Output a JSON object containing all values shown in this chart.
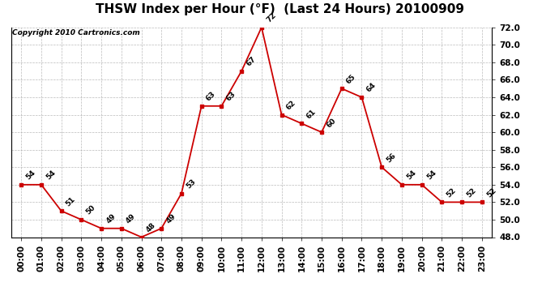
{
  "title": "THSW Index per Hour (°F)  (Last 24 Hours) 20100909",
  "copyright": "Copyright 2010 Cartronics.com",
  "hours": [
    "00:00",
    "01:00",
    "02:00",
    "03:00",
    "04:00",
    "05:00",
    "06:00",
    "07:00",
    "08:00",
    "09:00",
    "10:00",
    "11:00",
    "12:00",
    "13:00",
    "14:00",
    "15:00",
    "16:00",
    "17:00",
    "18:00",
    "19:00",
    "20:00",
    "21:00",
    "22:00",
    "23:00"
  ],
  "values": [
    54,
    54,
    51,
    50,
    49,
    49,
    48,
    49,
    53,
    63,
    63,
    67,
    72,
    62,
    61,
    60,
    65,
    64,
    56,
    54,
    54,
    52,
    52,
    52
  ],
  "ylim": [
    48.0,
    72.0
  ],
  "yticks": [
    48.0,
    50.0,
    52.0,
    54.0,
    56.0,
    58.0,
    60.0,
    62.0,
    64.0,
    66.0,
    68.0,
    70.0,
    72.0
  ],
  "line_color": "#cc0000",
  "marker_color": "#cc0000",
  "bg_color": "#ffffff",
  "plot_bg_color": "#ffffff",
  "grid_color": "#aaaaaa",
  "title_fontsize": 11,
  "label_fontsize": 7.5,
  "annotation_fontsize": 6.5,
  "copyright_fontsize": 6.5
}
